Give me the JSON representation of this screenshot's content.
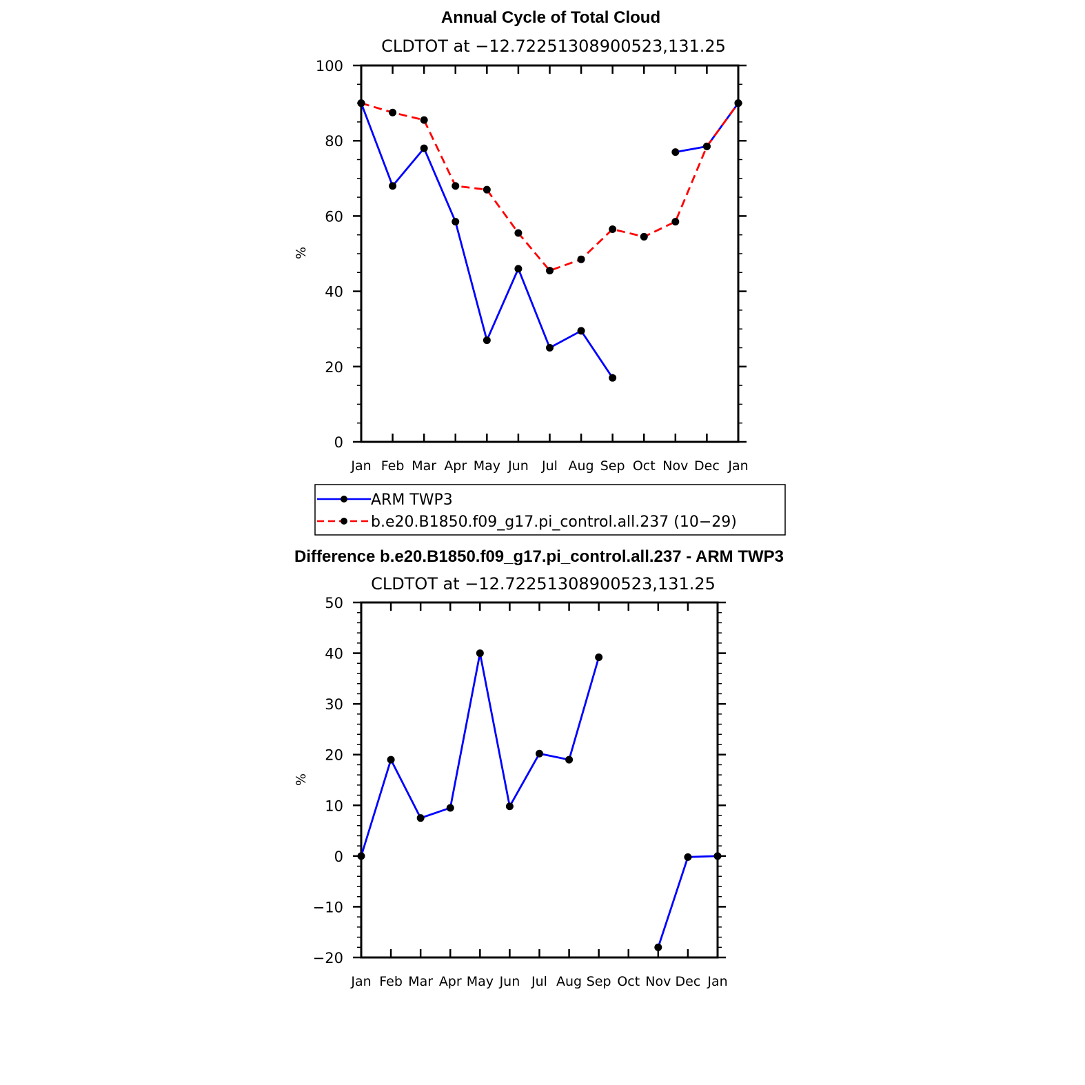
{
  "chart_data": [
    {
      "type": "line",
      "title": "Annual Cycle of Total Cloud",
      "subtitle": "CLDTOT at −12.72251308900523,131.25",
      "ylabel": "%",
      "xlabel": "",
      "ylim": [
        0,
        100
      ],
      "yticks": [
        "0",
        "20",
        "40",
        "60",
        "80",
        "100"
      ],
      "categories": [
        "Jan",
        "Feb",
        "Mar",
        "Apr",
        "May",
        "Jun",
        "Jul",
        "Aug",
        "Sep",
        "Oct",
        "Nov",
        "Dec",
        "Jan"
      ],
      "series": [
        {
          "name": "ARM TWP3",
          "color": "#0000ff",
          "dash": "solid",
          "values": [
            90,
            68,
            78,
            58.5,
            27,
            46,
            25,
            29.5,
            17,
            null,
            77,
            78.5,
            90
          ]
        },
        {
          "name": "b.e20.B1850.f09_g17.pi_control.all.237 (10−29)",
          "color": "#ff0000",
          "dash": "dashed",
          "values": [
            90,
            87.5,
            85.5,
            68,
            67,
            55.5,
            45.5,
            48.5,
            56.5,
            54.5,
            58.5,
            78.5,
            90
          ]
        }
      ],
      "legend_position": "below"
    },
    {
      "type": "line",
      "title": "Difference b.e20.B1850.f09_g17.pi_control.all.237 - ARM TWP3",
      "subtitle": "CLDTOT at −12.72251308900523,131.25",
      "ylabel": "%",
      "xlabel": "",
      "ylim": [
        -20,
        50
      ],
      "yticks": [
        "−20",
        "−10",
        "0",
        "10",
        "20",
        "30",
        "40",
        "50"
      ],
      "categories": [
        "Jan",
        "Feb",
        "Mar",
        "Apr",
        "May",
        "Jun",
        "Jul",
        "Aug",
        "Sep",
        "Oct",
        "Nov",
        "Dec",
        "Jan"
      ],
      "series": [
        {
          "name": "Difference",
          "color": "#0000ff",
          "dash": "solid",
          "values": [
            0,
            19,
            7.5,
            9.5,
            40,
            9.8,
            20.2,
            19,
            39.2,
            null,
            -18,
            -0.2,
            0
          ]
        }
      ]
    }
  ]
}
